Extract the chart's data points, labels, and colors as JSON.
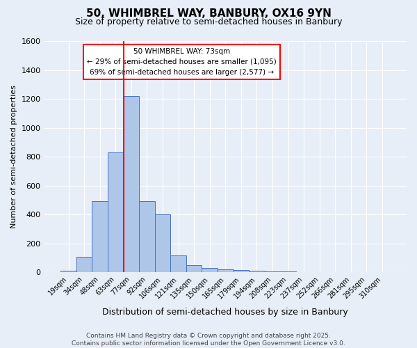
{
  "title": "50, WHIMBREL WAY, BANBURY, OX16 9YN",
  "subtitle": "Size of property relative to semi-detached houses in Banbury",
  "xlabel": "Distribution of semi-detached houses by size in Banbury",
  "ylabel": "Number of semi-detached properties",
  "bin_labels": [
    "19sqm",
    "34sqm",
    "48sqm",
    "63sqm",
    "77sqm",
    "92sqm",
    "106sqm",
    "121sqm",
    "135sqm",
    "150sqm",
    "165sqm",
    "179sqm",
    "194sqm",
    "208sqm",
    "223sqm",
    "237sqm",
    "252sqm",
    "266sqm",
    "281sqm",
    "295sqm",
    "310sqm"
  ],
  "bar_values": [
    10,
    107,
    493,
    830,
    1220,
    493,
    400,
    115,
    50,
    30,
    20,
    13,
    10,
    5,
    3,
    2,
    1,
    1,
    0,
    0,
    0
  ],
  "bar_color": "#aec6e8",
  "bar_edge_color": "#4472c4",
  "vline_pos": 3.5,
  "vline_color": "red",
  "annotation_title": "50 WHIMBREL WAY: 73sqm",
  "annotation_line1": "← 29% of semi-detached houses are smaller (1,095)",
  "annotation_line2": "69% of semi-detached houses are larger (2,577) →",
  "annotation_box_color": "white",
  "annotation_box_edge": "red",
  "ylim": [
    0,
    1600
  ],
  "yticks": [
    0,
    200,
    400,
    600,
    800,
    1000,
    1200,
    1400,
    1600
  ],
  "background_color": "#e8eef8",
  "footer1": "Contains HM Land Registry data © Crown copyright and database right 2025.",
  "footer2": "Contains public sector information licensed under the Open Government Licence v3.0.",
  "title_fontsize": 11,
  "subtitle_fontsize": 9,
  "annotation_fontsize": 7.5,
  "footer_fontsize": 6.5
}
